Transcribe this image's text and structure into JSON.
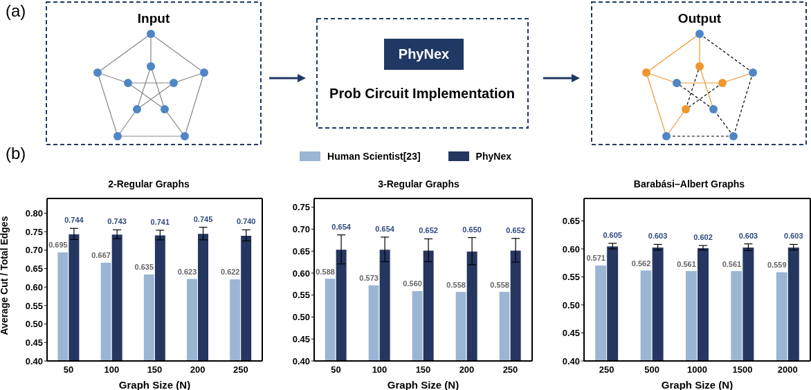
{
  "chart_data": [
    {
      "type": "other",
      "title": "(a)",
      "annotations": [
        "Input",
        "PhyNex",
        "Prob Circuit Implementation",
        "Output",
        "(b)"
      ]
    },
    {
      "type": "bar",
      "title": "2-Regular Graphs",
      "xlabel": "Graph Size (N)",
      "ylabel": "Average Cut / Total Edges",
      "categories": [
        "50",
        "100",
        "150",
        "200",
        "250"
      ],
      "ylim": [
        0.4,
        0.84
      ],
      "yticks": [
        {
          "value": 0.4,
          "label": "0.40"
        },
        {
          "value": 0.45,
          "label": "0.45"
        },
        {
          "value": 0.5,
          "label": "0.50"
        },
        {
          "value": 0.55,
          "label": "0.55"
        },
        {
          "value": 0.6,
          "label": "0.60"
        },
        {
          "value": 0.65,
          "label": "0.65"
        },
        {
          "value": 0.7,
          "label": "0.70"
        },
        {
          "value": 0.75,
          "label": "0.75"
        },
        {
          "value": 0.8,
          "label": "0.80"
        }
      ],
      "legend": "top",
      "series": [
        {
          "name": "Human Scientist[23]",
          "color": "#9bb5d4",
          "values": [
            0.695,
            0.667,
            0.635,
            0.623,
            0.622
          ],
          "value_labels": [
            "0.695",
            "0.667",
            "0.635",
            "0.623",
            "0.622"
          ]
        },
        {
          "name": "PhyNex",
          "color": "#253660",
          "values": [
            0.744,
            0.743,
            0.741,
            0.745,
            0.74
          ],
          "errors": [
            0.015,
            0.012,
            0.013,
            0.017,
            0.015
          ],
          "value_labels": [
            "0.744",
            "0.743",
            "0.741",
            "0.745",
            "0.740"
          ]
        }
      ]
    },
    {
      "type": "bar",
      "title": "3-Regular Graphs",
      "xlabel": "Graph Size (N)",
      "categories": [
        "50",
        "100",
        "150",
        "200",
        "250"
      ],
      "ylim": [
        0.4,
        0.77
      ],
      "yticks": [
        {
          "value": 0.4,
          "label": "0.40"
        },
        {
          "value": 0.45,
          "label": "0.45"
        },
        {
          "value": 0.5,
          "label": "0.50"
        },
        {
          "value": 0.55,
          "label": "0.55"
        },
        {
          "value": 0.6,
          "label": "0.60"
        },
        {
          "value": 0.65,
          "label": "0.65"
        },
        {
          "value": 0.7,
          "label": "0.70"
        },
        {
          "value": 0.75,
          "label": "0.75"
        }
      ],
      "series": [
        {
          "color": "#9bb5d4",
          "values": [
            0.588,
            0.573,
            0.56,
            0.558,
            0.558
          ],
          "value_labels": [
            "0.588",
            "0.573",
            "0.560",
            "0.558",
            "0.558"
          ]
        },
        {
          "color": "#253660",
          "values": [
            0.654,
            0.654,
            0.652,
            0.65,
            0.652
          ],
          "errors": [
            0.033,
            0.028,
            0.026,
            0.031,
            0.027
          ],
          "value_labels": [
            "0.654",
            "0.654",
            "0.652",
            "0.650",
            "0.652"
          ]
        }
      ]
    },
    {
      "type": "bar",
      "title": "Barabási–Albert Graphs",
      "xlabel": "Graph Size (N)",
      "categories": [
        "250",
        "500",
        "1000",
        "1500",
        "2000"
      ],
      "ylim": [
        0.4,
        0.69
      ],
      "yticks": [
        {
          "value": 0.4,
          "label": "0.40"
        },
        {
          "value": 0.45,
          "label": "0.45"
        },
        {
          "value": 0.5,
          "label": "0.50"
        },
        {
          "value": 0.55,
          "label": "0.55"
        },
        {
          "value": 0.6,
          "label": "0.60"
        },
        {
          "value": 0.65,
          "label": "0.65"
        }
      ],
      "series": [
        {
          "color": "#9bb5d4",
          "values": [
            0.571,
            0.562,
            0.561,
            0.561,
            0.559
          ],
          "value_labels": [
            "0.571",
            "0.562",
            "0.561",
            "0.561",
            "0.559"
          ]
        },
        {
          "color": "#253660",
          "values": [
            0.605,
            0.603,
            0.602,
            0.603,
            0.603
          ],
          "errors": [
            0.005,
            0.005,
            0.004,
            0.006,
            0.005
          ],
          "value_labels": [
            "0.605",
            "0.603",
            "0.602",
            "0.603",
            "0.603"
          ]
        }
      ]
    }
  ]
}
